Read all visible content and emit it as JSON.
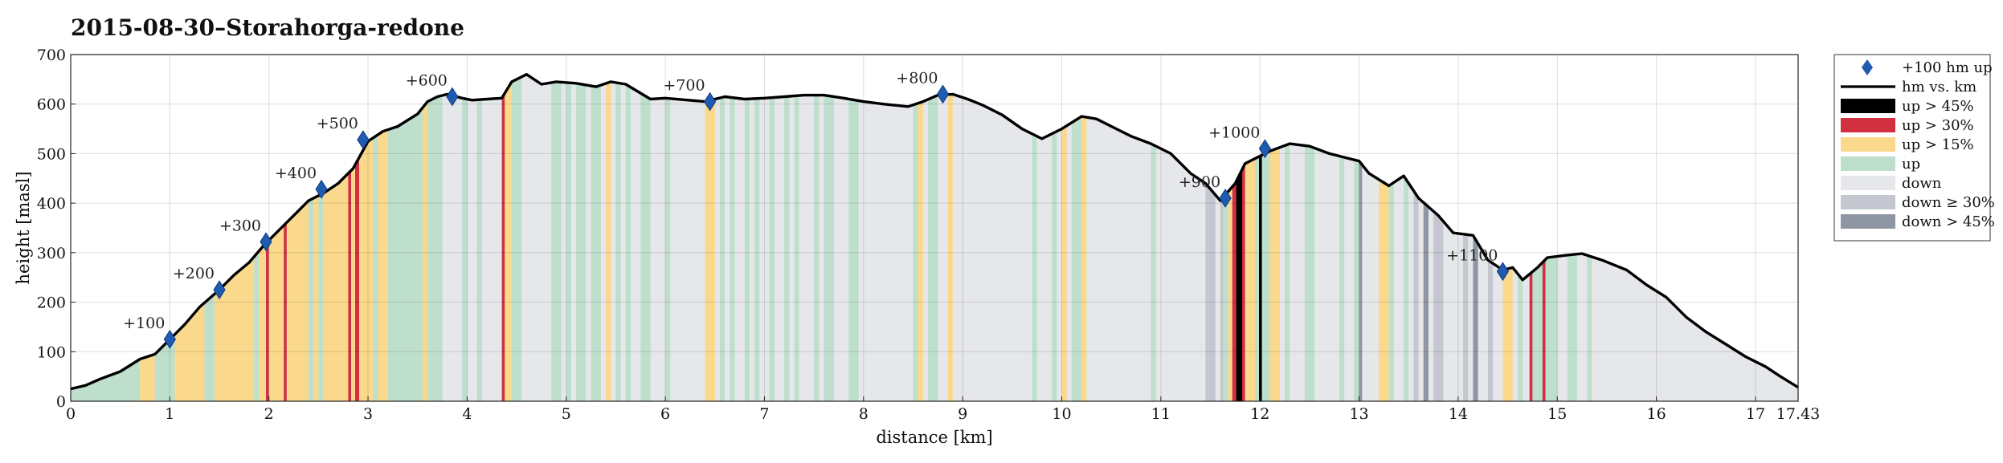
{
  "chart_data": {
    "type": "area",
    "title": "2015-08-30–Storahorga-redone",
    "xlabel": "distance [km]",
    "ylabel": "height [masl]",
    "xlim": [
      0,
      17.43
    ],
    "ylim": [
      0,
      700
    ],
    "xticks": [
      "0",
      "1",
      "2",
      "3",
      "4",
      "5",
      "6",
      "7",
      "8",
      "9",
      "10",
      "11",
      "12",
      "13",
      "14",
      "15",
      "16",
      "17",
      "17.43"
    ],
    "xtick_values": [
      0,
      1,
      2,
      3,
      4,
      5,
      6,
      7,
      8,
      9,
      10,
      11,
      12,
      13,
      14,
      15,
      16,
      17,
      17.43
    ],
    "yticks": [
      "0",
      "100",
      "200",
      "300",
      "400",
      "500",
      "600",
      "700"
    ],
    "ytick_values": [
      0,
      100,
      200,
      300,
      400,
      500,
      600,
      700
    ],
    "grid": true,
    "legend_position": "outside-right",
    "legend": [
      {
        "key": "marker",
        "label": "+100 hm up"
      },
      {
        "key": "line",
        "label": "hm vs. km"
      },
      {
        "key": "up45",
        "label": "up > 45%"
      },
      {
        "key": "up30",
        "label": "up > 30%"
      },
      {
        "key": "up15",
        "label": "up > 15%"
      },
      {
        "key": "up",
        "label": "up"
      },
      {
        "key": "down",
        "label": "down"
      },
      {
        "key": "down30",
        "label": "down ≥ 30%"
      },
      {
        "key": "down45",
        "label": "down > 45%"
      }
    ],
    "colors": {
      "up45": "#000000",
      "up30": "#d03040",
      "up15": "#fbd98c",
      "up": "#bedfcc",
      "down": "#e6e7ea",
      "down30": "#c4c7cf",
      "down45": "#8e96a3",
      "line": "#000000",
      "marker": "#1f5bb0"
    },
    "profile": [
      [
        0,
        25
      ],
      [
        0.15,
        32
      ],
      [
        0.3,
        45
      ],
      [
        0.5,
        60
      ],
      [
        0.7,
        85
      ],
      [
        0.85,
        95
      ],
      [
        1.0,
        125
      ],
      [
        1.15,
        155
      ],
      [
        1.3,
        190
      ],
      [
        1.5,
        225
      ],
      [
        1.65,
        255
      ],
      [
        1.8,
        280
      ],
      [
        1.95,
        315
      ],
      [
        2.1,
        345
      ],
      [
        2.3,
        385
      ],
      [
        2.4,
        405
      ],
      [
        2.55,
        420
      ],
      [
        2.7,
        440
      ],
      [
        2.85,
        470
      ],
      [
        3.0,
        525
      ],
      [
        3.15,
        545
      ],
      [
        3.3,
        555
      ],
      [
        3.5,
        580
      ],
      [
        3.6,
        605
      ],
      [
        3.7,
        615
      ],
      [
        3.8,
        620
      ],
      [
        3.95,
        612
      ],
      [
        4.05,
        608
      ],
      [
        4.2,
        610
      ],
      [
        4.35,
        612
      ],
      [
        4.45,
        645
      ],
      [
        4.6,
        660
      ],
      [
        4.75,
        640
      ],
      [
        4.9,
        645
      ],
      [
        5.1,
        642
      ],
      [
        5.3,
        635
      ],
      [
        5.45,
        645
      ],
      [
        5.6,
        640
      ],
      [
        5.85,
        610
      ],
      [
        6.0,
        612
      ],
      [
        6.4,
        605
      ],
      [
        6.6,
        615
      ],
      [
        6.8,
        610
      ],
      [
        7.0,
        612
      ],
      [
        7.2,
        615
      ],
      [
        7.4,
        618
      ],
      [
        7.6,
        618
      ],
      [
        7.8,
        612
      ],
      [
        8.0,
        605
      ],
      [
        8.2,
        600
      ],
      [
        8.45,
        595
      ],
      [
        8.6,
        605
      ],
      [
        8.75,
        618
      ],
      [
        8.9,
        620
      ],
      [
        9.05,
        610
      ],
      [
        9.2,
        598
      ],
      [
        9.4,
        578
      ],
      [
        9.6,
        550
      ],
      [
        9.8,
        530
      ],
      [
        10.0,
        550
      ],
      [
        10.2,
        575
      ],
      [
        10.35,
        570
      ],
      [
        10.5,
        555
      ],
      [
        10.7,
        535
      ],
      [
        10.9,
        520
      ],
      [
        11.1,
        500
      ],
      [
        11.3,
        460
      ],
      [
        11.45,
        440
      ],
      [
        11.6,
        405
      ],
      [
        11.75,
        440
      ],
      [
        11.85,
        480
      ],
      [
        12.0,
        495
      ],
      [
        12.1,
        505
      ],
      [
        12.3,
        520
      ],
      [
        12.5,
        515
      ],
      [
        12.7,
        500
      ],
      [
        12.9,
        490
      ],
      [
        13.0,
        485
      ],
      [
        13.1,
        460
      ],
      [
        13.3,
        435
      ],
      [
        13.45,
        455
      ],
      [
        13.6,
        410
      ],
      [
        13.8,
        375
      ],
      [
        13.95,
        340
      ],
      [
        14.15,
        335
      ],
      [
        14.3,
        285
      ],
      [
        14.45,
        265
      ],
      [
        14.55,
        270
      ],
      [
        14.65,
        245
      ],
      [
        14.8,
        270
      ],
      [
        14.9,
        290
      ],
      [
        15.1,
        295
      ],
      [
        15.25,
        298
      ],
      [
        15.45,
        285
      ],
      [
        15.7,
        265
      ],
      [
        15.9,
        235
      ],
      [
        16.1,
        210
      ],
      [
        16.3,
        170
      ],
      [
        16.5,
        140
      ],
      [
        16.7,
        115
      ],
      [
        16.9,
        90
      ],
      [
        17.1,
        70
      ],
      [
        17.25,
        50
      ],
      [
        17.43,
        28
      ]
    ],
    "segments": [
      [
        0.0,
        0.25,
        "up"
      ],
      [
        0.25,
        0.7,
        "up"
      ],
      [
        0.7,
        0.85,
        "up15"
      ],
      [
        0.85,
        0.9,
        "up"
      ],
      [
        0.9,
        1.05,
        "up"
      ],
      [
        1.05,
        1.35,
        "up15"
      ],
      [
        1.35,
        1.45,
        "up"
      ],
      [
        1.45,
        1.85,
        "up15"
      ],
      [
        1.85,
        1.9,
        "up"
      ],
      [
        1.9,
        1.97,
        "up15"
      ],
      [
        1.97,
        2.0,
        "up30"
      ],
      [
        2.0,
        2.15,
        "up15"
      ],
      [
        2.15,
        2.18,
        "up30"
      ],
      [
        2.18,
        2.4,
        "up15"
      ],
      [
        2.4,
        2.45,
        "up"
      ],
      [
        2.45,
        2.5,
        "up15"
      ],
      [
        2.5,
        2.55,
        "up"
      ],
      [
        2.55,
        2.8,
        "up15"
      ],
      [
        2.8,
        2.83,
        "up30"
      ],
      [
        2.83,
        2.87,
        "up15"
      ],
      [
        2.87,
        2.91,
        "up30"
      ],
      [
        2.91,
        3.05,
        "up15"
      ],
      [
        3.05,
        3.1,
        "up"
      ],
      [
        3.1,
        3.2,
        "up15"
      ],
      [
        3.2,
        3.55,
        "up"
      ],
      [
        3.55,
        3.6,
        "up15"
      ],
      [
        3.6,
        3.75,
        "up"
      ],
      [
        3.95,
        4.0,
        "up"
      ],
      [
        4.1,
        4.15,
        "up"
      ],
      [
        4.35,
        4.38,
        "up30"
      ],
      [
        4.38,
        4.45,
        "up15"
      ],
      [
        4.45,
        4.55,
        "up"
      ],
      [
        4.85,
        4.95,
        "up"
      ],
      [
        5.0,
        5.05,
        "up"
      ],
      [
        5.1,
        5.2,
        "up"
      ],
      [
        5.25,
        5.35,
        "up"
      ],
      [
        5.4,
        5.45,
        "up15"
      ],
      [
        5.5,
        5.55,
        "up"
      ],
      [
        5.6,
        5.65,
        "up"
      ],
      [
        5.75,
        5.85,
        "up"
      ],
      [
        6.0,
        6.05,
        "up"
      ],
      [
        6.4,
        6.5,
        "up15"
      ],
      [
        6.55,
        6.6,
        "up"
      ],
      [
        6.65,
        6.7,
        "up"
      ],
      [
        6.8,
        6.85,
        "up"
      ],
      [
        6.9,
        6.95,
        "up"
      ],
      [
        7.05,
        7.1,
        "up"
      ],
      [
        7.2,
        7.25,
        "up"
      ],
      [
        7.3,
        7.35,
        "up"
      ],
      [
        7.5,
        7.55,
        "up"
      ],
      [
        7.6,
        7.7,
        "up"
      ],
      [
        7.85,
        7.95,
        "up"
      ],
      [
        8.5,
        8.55,
        "up"
      ],
      [
        8.55,
        8.6,
        "up15"
      ],
      [
        8.65,
        8.75,
        "up"
      ],
      [
        8.85,
        8.9,
        "up15"
      ],
      [
        9.7,
        9.75,
        "up"
      ],
      [
        9.9,
        9.95,
        "up"
      ],
      [
        10.0,
        10.05,
        "up15"
      ],
      [
        10.1,
        10.2,
        "up"
      ],
      [
        10.2,
        10.25,
        "up15"
      ],
      [
        10.9,
        10.95,
        "up"
      ],
      [
        11.45,
        11.55,
        "down30"
      ],
      [
        11.6,
        11.63,
        "down30"
      ],
      [
        11.63,
        11.68,
        "up"
      ],
      [
        11.68,
        11.72,
        "up15"
      ],
      [
        11.72,
        11.76,
        "up30"
      ],
      [
        11.76,
        11.82,
        "up45"
      ],
      [
        11.82,
        11.85,
        "up30"
      ],
      [
        11.85,
        11.95,
        "up15"
      ],
      [
        11.95,
        11.99,
        "up"
      ],
      [
        11.99,
        12.02,
        "up45"
      ],
      [
        12.02,
        12.1,
        "up"
      ],
      [
        12.1,
        12.2,
        "up15"
      ],
      [
        12.25,
        12.3,
        "up"
      ],
      [
        12.45,
        12.55,
        "up"
      ],
      [
        12.8,
        12.85,
        "up"
      ],
      [
        12.95,
        13.0,
        "up"
      ],
      [
        13.0,
        13.03,
        "down45"
      ],
      [
        13.2,
        13.3,
        "up15"
      ],
      [
        13.3,
        13.35,
        "up"
      ],
      [
        13.45,
        13.5,
        "up"
      ],
      [
        13.55,
        13.6,
        "down30"
      ],
      [
        13.65,
        13.7,
        "down45"
      ],
      [
        13.75,
        13.85,
        "down30"
      ],
      [
        14.05,
        14.1,
        "down30"
      ],
      [
        14.15,
        14.2,
        "down45"
      ],
      [
        14.3,
        14.35,
        "down30"
      ],
      [
        14.45,
        14.55,
        "up15"
      ],
      [
        14.6,
        14.65,
        "up"
      ],
      [
        14.72,
        14.75,
        "up30"
      ],
      [
        14.75,
        14.85,
        "up"
      ],
      [
        14.85,
        14.88,
        "up30"
      ],
      [
        14.88,
        15.0,
        "up"
      ],
      [
        15.1,
        15.2,
        "up"
      ],
      [
        15.3,
        15.35,
        "up"
      ]
    ],
    "markers": [
      {
        "x": 1.0,
        "y": 125,
        "label": "+100"
      },
      {
        "x": 1.5,
        "y": 225,
        "label": "+200"
      },
      {
        "x": 1.97,
        "y": 322,
        "label": "+300"
      },
      {
        "x": 2.53,
        "y": 428,
        "label": "+400"
      },
      {
        "x": 2.95,
        "y": 528,
        "label": "+500"
      },
      {
        "x": 3.85,
        "y": 615,
        "label": "+600"
      },
      {
        "x": 6.45,
        "y": 605,
        "label": "+700"
      },
      {
        "x": 8.8,
        "y": 620,
        "label": "+800"
      },
      {
        "x": 11.65,
        "y": 410,
        "label": "+900"
      },
      {
        "x": 12.05,
        "y": 510,
        "label": "+1000"
      },
      {
        "x": 14.45,
        "y": 262,
        "label": "+1100"
      }
    ]
  }
}
